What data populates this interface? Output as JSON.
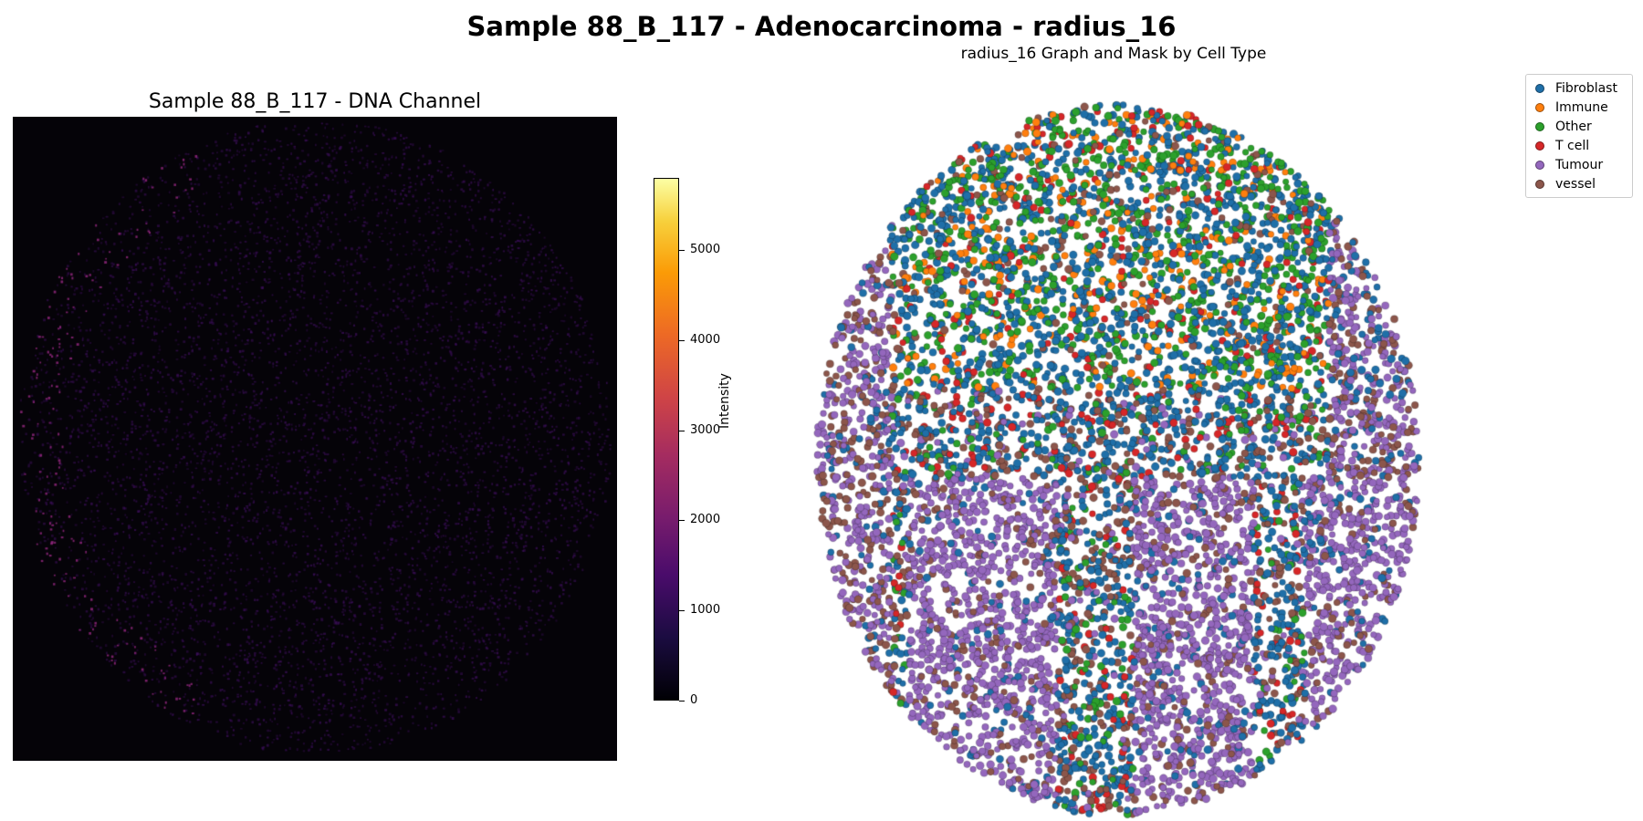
{
  "figure": {
    "suptitle": "Sample 88_B_117 - Adenocarcinoma - radius_16"
  },
  "dna_panel": {
    "title": "Sample 88_B_117 - DNA Channel",
    "colorbar": {
      "label": "Intensity",
      "colormap": "inferno",
      "range": [
        0,
        5800
      ],
      "ticks": [
        "0",
        "1000",
        "2000",
        "3000",
        "4000",
        "5000"
      ]
    }
  },
  "graph_panel": {
    "title": "radius_16 Graph and Mask by Cell Type",
    "legend": [
      {
        "label": "Fibroblast",
        "color": "#1f6fa8"
      },
      {
        "label": "Immune",
        "color": "#ff7f0e"
      },
      {
        "label": "Other",
        "color": "#2ca02c"
      },
      {
        "label": "T cell",
        "color": "#d62728"
      },
      {
        "label": "Tumour",
        "color": "#9467bd"
      },
      {
        "label": "vessel",
        "color": "#8c564b"
      }
    ]
  }
}
